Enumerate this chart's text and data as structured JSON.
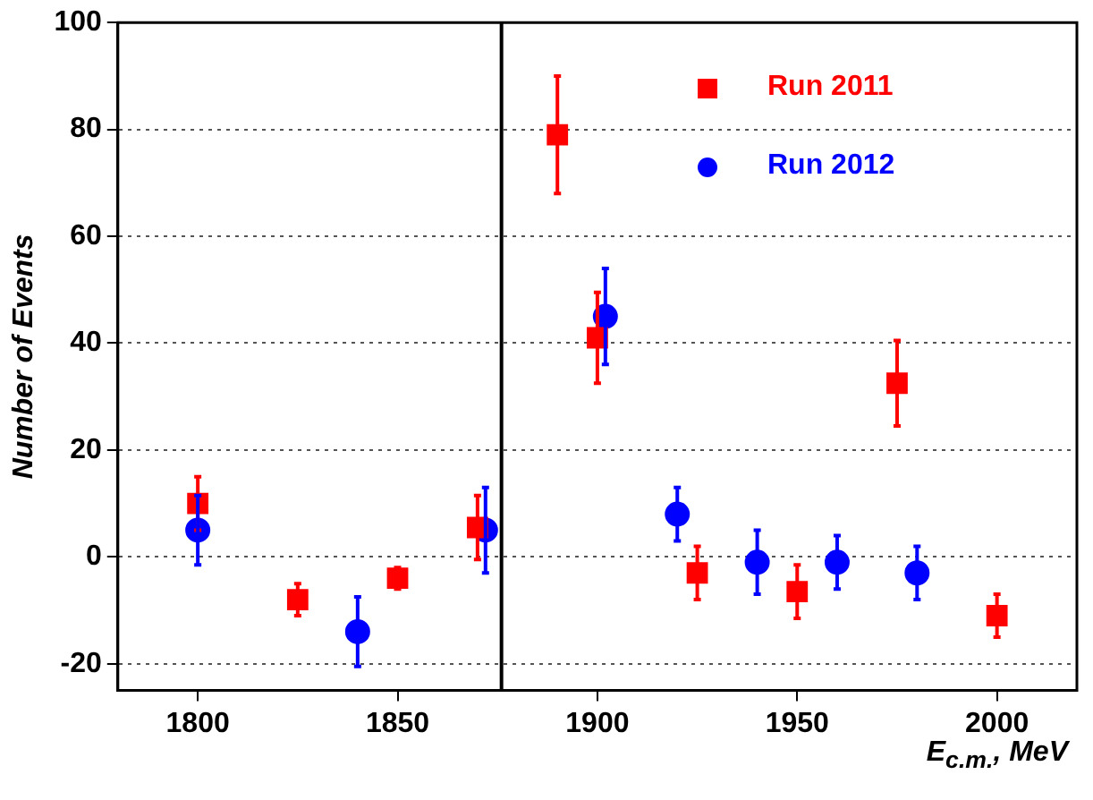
{
  "chart_data": {
    "type": "scatter",
    "xlabel": "E$_{c.m.}$, MeV",
    "ylabel": "Number of Events",
    "xlim": [
      1780,
      2020
    ],
    "xticks": [
      1800,
      1850,
      1900,
      1950,
      2000
    ],
    "ylim": [
      -25,
      100
    ],
    "yticks": [
      -20,
      0,
      20,
      40,
      60,
      80,
      100
    ],
    "grid": "y",
    "legend": "top right",
    "ref_lines": [
      {
        "axis": "x",
        "value": 1876,
        "color": "#000000"
      }
    ],
    "series": [
      {
        "name": "Run 2011",
        "color": "#ff0000",
        "marker": "square",
        "x": [
          1800,
          1825,
          1850,
          1870,
          1890,
          1900,
          1925,
          1950,
          1975,
          2000
        ],
        "values": [
          10,
          -8,
          -4,
          5.5,
          79,
          41,
          -3,
          -6.5,
          32.5,
          -11
        ],
        "errors": [
          5,
          3,
          2,
          6,
          11,
          8.5,
          5,
          5,
          8,
          4
        ]
      },
      {
        "name": "Run 2012",
        "color": "#0000ff",
        "marker": "circle",
        "x": [
          1800,
          1840,
          1872,
          1902,
          1920,
          1940,
          1960,
          1980
        ],
        "values": [
          5,
          -14,
          5,
          45,
          8,
          -1,
          -1,
          -3
        ],
        "errors": [
          6.5,
          6.5,
          8,
          9,
          5,
          6,
          5,
          5
        ]
      }
    ]
  }
}
